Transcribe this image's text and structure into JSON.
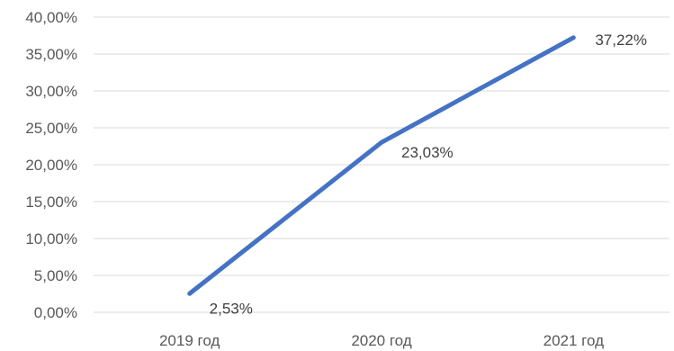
{
  "chart_data": {
    "type": "line",
    "categories": [
      "2019 год",
      "2020 год",
      "2021 год"
    ],
    "series": [
      {
        "values": [
          2.53,
          23.03,
          37.22
        ],
        "labels": [
          "2,53%",
          "23,03%",
          "37,22%"
        ]
      }
    ],
    "y_ticks": [
      "0,00%",
      "5,00%",
      "10,00%",
      "15,00%",
      "20,00%",
      "25,00%",
      "30,00%",
      "35,00%",
      "40,00%"
    ],
    "ylim": [
      0,
      40
    ],
    "y_step": 5,
    "grid": true,
    "legend": "none",
    "line_color": "#4472C4",
    "grid_color": "#d9d9d9"
  }
}
